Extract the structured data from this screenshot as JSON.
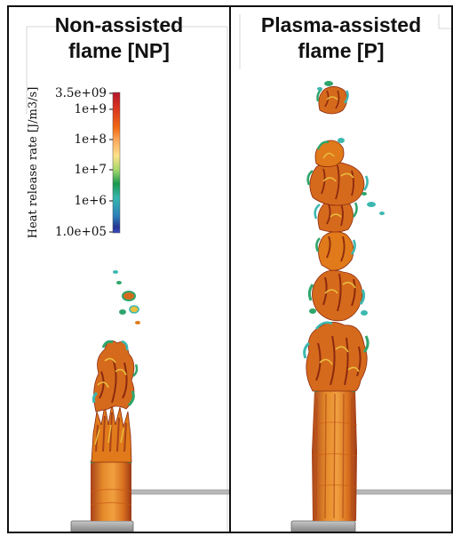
{
  "panels": [
    {
      "id": "NP",
      "title_line1": "Non-assisted",
      "title_line2": "flame [NP]"
    },
    {
      "id": "P",
      "title_line1": "Plasma-assisted",
      "title_line2": "flame [P]"
    }
  ],
  "colorbar": {
    "title": "Heat release rate [J/m3/s]",
    "ticks": [
      "3.5e+09",
      "1e+9",
      "1e+8",
      "1e+7",
      "1e+6",
      "1.0e+05"
    ],
    "colors": [
      "#b2182b",
      "#d7301f",
      "#f16913",
      "#fdae61",
      "#fee08b",
      "#a6d96a",
      "#1a9850",
      "#35b7b0",
      "#2c7fb8",
      "#253494",
      "#3b4cc0"
    ]
  },
  "colors": {
    "flame_core": "#e07a1a",
    "flame_dark": "#8b2a10",
    "flame_yellow": "#e8c040",
    "flame_green": "#2fa56b",
    "flame_cyan": "#3cb8b0",
    "burner": "#9a9a9a"
  }
}
